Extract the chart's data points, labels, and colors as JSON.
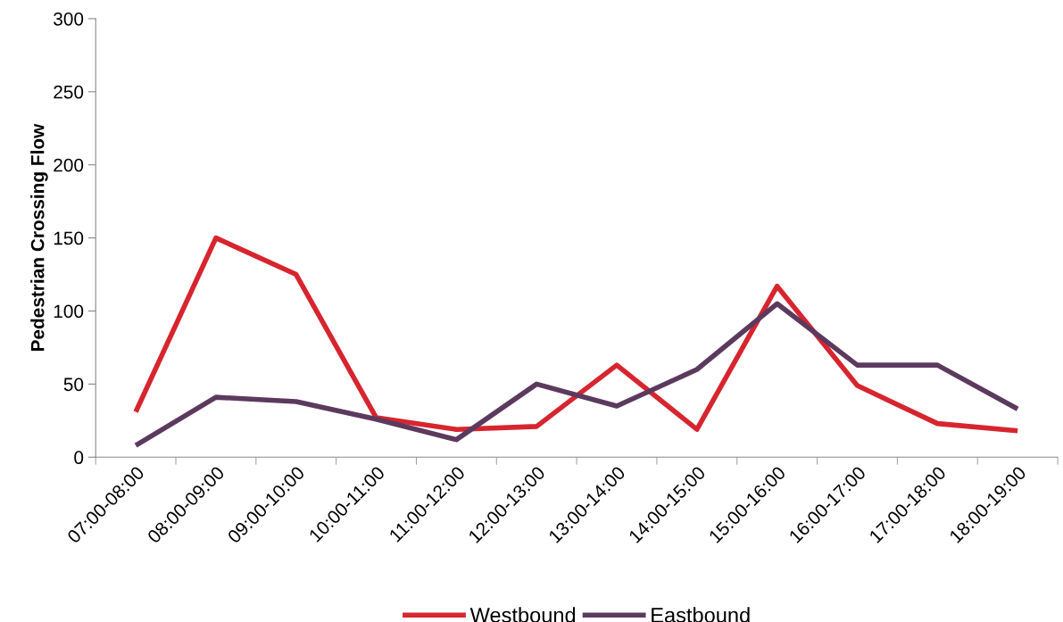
{
  "chart_data": {
    "type": "line",
    "ylabel": "Pedestrian Crossing Flow",
    "categories": [
      "07:00-08:00",
      "08:00-09:00",
      "09:00-10:00",
      "10:00-11:00",
      "11:00-12:00",
      "12:00-13:00",
      "13:00-14:00",
      "14:00-15:00",
      "15:00-16:00",
      "16:00-17:00",
      "17:00-18:00",
      "18:00-19:00"
    ],
    "series": [
      {
        "name": "Westbound",
        "color": "#d7252f",
        "values": [
          31,
          150,
          125,
          27,
          19,
          21,
          63,
          19,
          117,
          49,
          23,
          18
        ]
      },
      {
        "name": "Eastbound",
        "color": "#5c3a5e",
        "values": [
          8,
          41,
          38,
          26,
          12,
          50,
          35,
          60,
          105,
          63,
          63,
          33
        ]
      }
    ],
    "ylim": [
      0,
      300
    ],
    "yticks": [
      0,
      50,
      100,
      150,
      200,
      250,
      300
    ],
    "grid": false,
    "legend": "bottom",
    "marker": "none",
    "line_style": "solid"
  }
}
